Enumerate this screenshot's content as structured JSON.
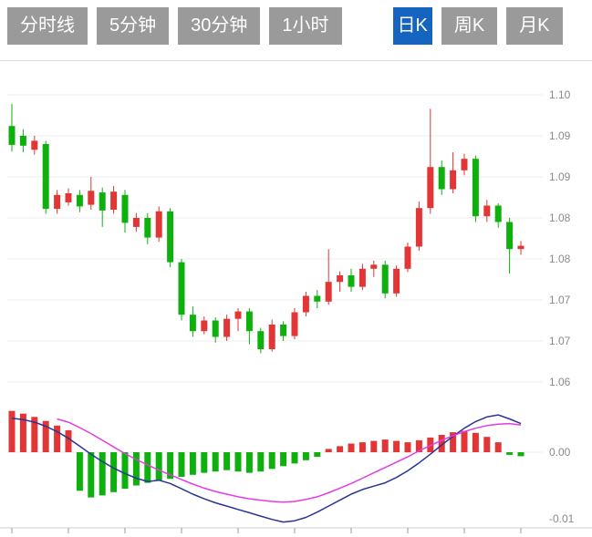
{
  "toolbar": {
    "tabs": [
      {
        "label": "分时线",
        "active": false
      },
      {
        "label": "5分钟",
        "active": false
      },
      {
        "label": "30分钟",
        "active": false
      },
      {
        "label": "1小时",
        "active": false
      },
      {
        "label": "日K",
        "active": true
      },
      {
        "label": "周K",
        "active": false
      },
      {
        "label": "月K",
        "active": false
      }
    ]
  },
  "chart_data": {
    "type": "candlestick_with_macd",
    "candle_format": "[open, high, low, close]",
    "main": {
      "y_axis_labels": [
        "1.10",
        "1.09",
        "1.09",
        "1.08",
        "1.08",
        "1.07",
        "1.07",
        "1.06"
      ],
      "y_top": 1.1,
      "y_step": 0.005,
      "ylim": [
        1.063,
        1.101
      ],
      "grid": true,
      "candles": [
        [
          1.0962,
          1.0989,
          1.0931,
          1.0939
        ],
        [
          1.095,
          1.0958,
          1.093,
          1.0938
        ],
        [
          1.0933,
          1.095,
          1.0927,
          1.0944
        ],
        [
          1.094,
          1.0944,
          1.0855,
          1.0861
        ],
        [
          1.0861,
          1.0884,
          1.0855,
          1.0878
        ],
        [
          1.0869,
          1.0886,
          1.0865,
          1.088
        ],
        [
          1.0878,
          1.0884,
          1.0857,
          1.0864
        ],
        [
          1.0866,
          1.09,
          1.086,
          1.0883
        ],
        [
          1.0881,
          1.0887,
          1.0839,
          1.0859
        ],
        [
          1.086,
          1.0889,
          1.0855,
          1.0882
        ],
        [
          1.0878,
          1.0884,
          1.0832,
          1.0844
        ],
        [
          1.0839,
          1.0856,
          1.0833,
          1.085
        ],
        [
          1.085,
          1.0856,
          1.0818,
          1.0826
        ],
        [
          1.0826,
          1.0864,
          1.0821,
          1.0858
        ],
        [
          1.0858,
          1.0862,
          1.079,
          1.0796
        ],
        [
          1.0796,
          1.08,
          1.0725,
          1.0732
        ],
        [
          1.0732,
          1.0742,
          1.0705,
          1.0712
        ],
        [
          1.0712,
          1.073,
          1.0708,
          1.0725
        ],
        [
          1.0725,
          1.0729,
          1.0698,
          1.0705
        ],
        [
          1.0705,
          1.0732,
          1.07,
          1.0727
        ],
        [
          1.0727,
          1.074,
          1.0712,
          1.0736
        ],
        [
          1.0736,
          1.074,
          1.0696,
          1.0712
        ],
        [
          1.0712,
          1.0716,
          1.0685,
          1.069
        ],
        [
          1.069,
          1.0726,
          1.0687,
          1.072
        ],
        [
          1.072,
          1.0724,
          1.07,
          1.0706
        ],
        [
          1.0706,
          1.074,
          1.0702,
          1.0735
        ],
        [
          1.0735,
          1.076,
          1.073,
          1.0755
        ],
        [
          1.0755,
          1.0762,
          1.074,
          1.0748
        ],
        [
          1.0748,
          1.0812,
          1.0744,
          1.0772
        ],
        [
          1.0772,
          1.0785,
          1.076,
          1.078
        ],
        [
          1.078,
          1.0788,
          1.076,
          1.0766
        ],
        [
          1.0766,
          1.0794,
          1.0762,
          1.0788
        ],
        [
          1.0788,
          1.0798,
          1.0778,
          1.0793
        ],
        [
          1.0793,
          1.0798,
          1.0752,
          1.0758
        ],
        [
          1.0758,
          1.0792,
          1.0754,
          1.0788
        ],
        [
          1.0788,
          1.082,
          1.0784,
          1.0815
        ],
        [
          1.0815,
          1.087,
          1.081,
          1.0862
        ],
        [
          1.0862,
          1.0983,
          1.0855,
          1.0912
        ],
        [
          1.0912,
          1.092,
          1.0878,
          1.0885
        ],
        [
          1.0885,
          1.093,
          1.088,
          1.0908
        ],
        [
          1.0908,
          1.0928,
          1.0902,
          1.0922
        ],
        [
          1.0922,
          1.0926,
          1.0845,
          1.0852
        ],
        [
          1.0852,
          1.0872,
          1.0845,
          1.0865
        ],
        [
          1.0865,
          1.0868,
          1.0838,
          1.0845
        ],
        [
          1.0845,
          1.085,
          1.0782,
          1.0812
        ],
        [
          1.0812,
          1.0822,
          1.0805,
          1.0816
        ]
      ]
    },
    "macd": {
      "y_axis_labels": [
        "0.00",
        "-0.01"
      ],
      "ylim": [
        -0.011,
        0.007
      ],
      "histogram": [
        0.0062,
        0.0058,
        0.0053,
        0.0047,
        0.004,
        0.0033,
        -0.0058,
        -0.0068,
        -0.0065,
        -0.006,
        -0.0055,
        -0.005,
        -0.0046,
        -0.0043,
        -0.004,
        -0.0037,
        -0.0034,
        -0.0031,
        -0.0029,
        -0.0027,
        -0.0029,
        -0.0031,
        -0.0029,
        -0.0025,
        -0.0021,
        -0.0017,
        -0.0012,
        -0.0007,
        0.0005,
        0.0009,
        0.0013,
        0.0015,
        0.0017,
        0.0019,
        0.0017,
        0.0015,
        0.0018,
        0.0022,
        0.0026,
        0.003,
        0.0032,
        0.0029,
        0.0023,
        0.0015,
        -0.0004,
        -0.0006
      ],
      "diff": [
        null,
        null,
        null,
        null,
        0.005,
        0.0045,
        0.0037,
        0.0028,
        0.0018,
        0.0008,
        -0.0002,
        -0.0011,
        -0.0019,
        -0.0027,
        -0.0034,
        -0.0041,
        -0.0048,
        -0.0054,
        -0.0059,
        -0.0063,
        -0.0067,
        -0.007,
        -0.0072,
        -0.0074,
        -0.0075,
        -0.0074,
        -0.0071,
        -0.0067,
        -0.0061,
        -0.0054,
        -0.0047,
        -0.0039,
        -0.0031,
        -0.0023,
        -0.0015,
        -0.0007,
        0.0002,
        0.001,
        0.0018,
        0.0025,
        0.0031,
        0.0036,
        0.004,
        0.0042,
        0.0043,
        0.0041
      ],
      "dea": [
        0.0051,
        0.0049,
        0.0045,
        0.0039,
        0.0031,
        0.0021,
        0.0009,
        -0.0003,
        -0.0014,
        -0.0024,
        -0.0032,
        -0.0039,
        -0.0044,
        -0.0042,
        -0.0047,
        -0.0055,
        -0.0063,
        -0.007,
        -0.0076,
        -0.0081,
        -0.0086,
        -0.0091,
        -0.0096,
        -0.0101,
        -0.0105,
        -0.0103,
        -0.0098,
        -0.009,
        -0.0081,
        -0.0072,
        -0.0063,
        -0.0056,
        -0.0051,
        -0.0046,
        -0.0038,
        -0.0028,
        -0.0016,
        -0.0003,
        0.0011,
        0.0024,
        0.0036,
        0.0046,
        0.0053,
        0.0056,
        0.005,
        0.0043
      ]
    },
    "colors": {
      "up": "#e23535",
      "down": "#0eb00e",
      "diff_line": "#e23ce2",
      "dea_line": "#283593",
      "active_tab_bg": "#1565c0",
      "tab_bg": "#9a9a9a",
      "grid": "#ececec",
      "axis_text": "#8a8a8a"
    }
  }
}
